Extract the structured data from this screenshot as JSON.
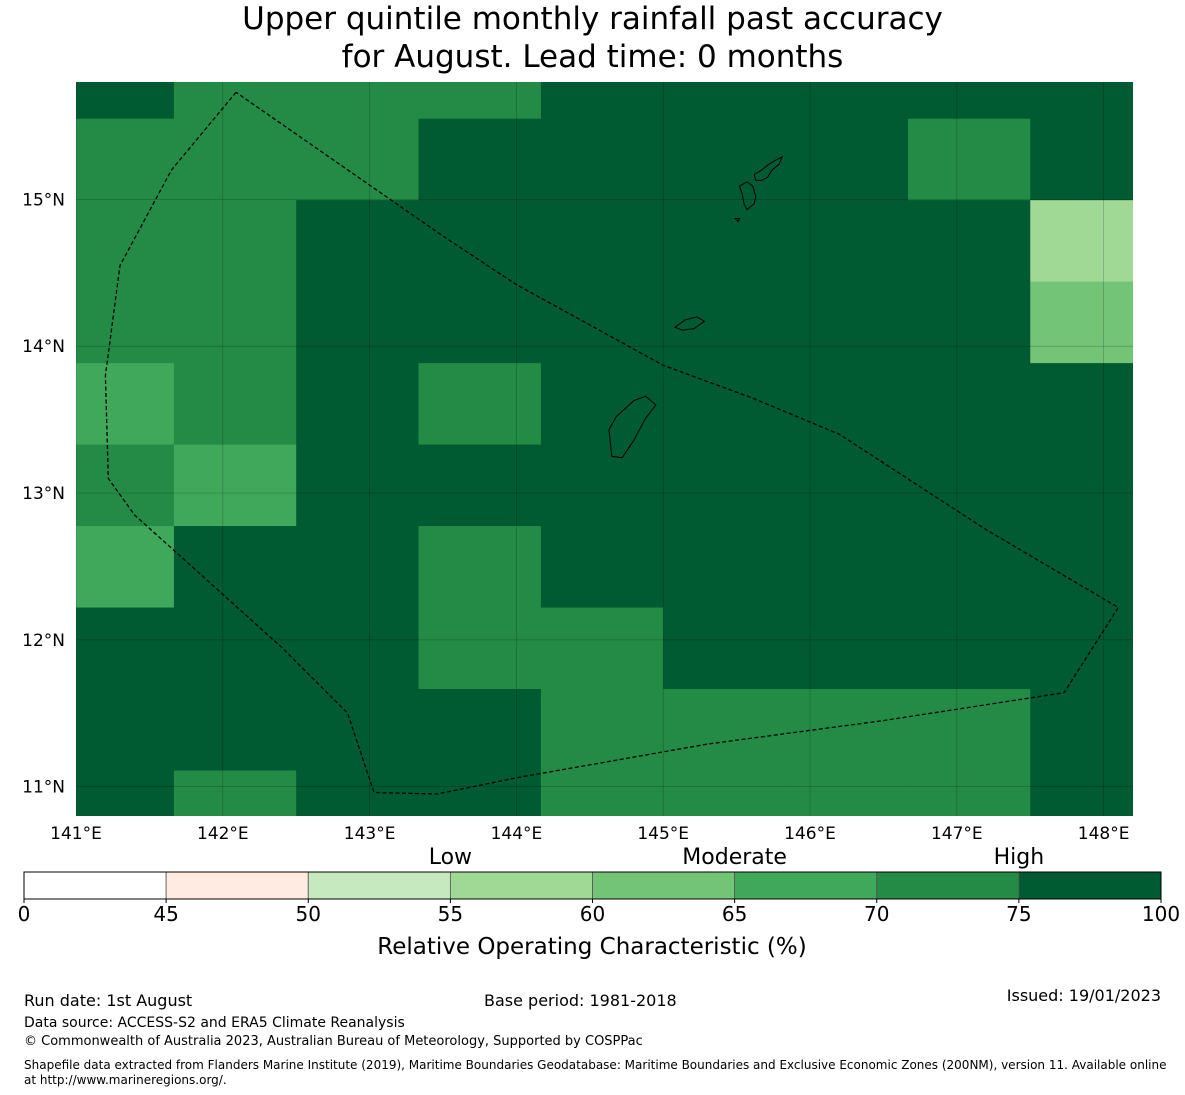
{
  "title": {
    "line1": "Upper quintile monthly rainfall past accuracy",
    "line2": "for August. Lead time: 0 months"
  },
  "map": {
    "lon_range": [
      141.0,
      148.2
    ],
    "lat_range": [
      10.8,
      15.8
    ],
    "lon_ticks": [
      {
        "value": 141,
        "label": "141°E"
      },
      {
        "value": 142,
        "label": "142°E"
      },
      {
        "value": 143,
        "label": "143°E"
      },
      {
        "value": 144,
        "label": "144°E"
      },
      {
        "value": 145,
        "label": "145°E"
      },
      {
        "value": 146,
        "label": "146°E"
      },
      {
        "value": 147,
        "label": "147°E"
      },
      {
        "value": 148,
        "label": "148°E"
      }
    ],
    "lat_ticks": [
      {
        "value": 11,
        "label": "11°N"
      },
      {
        "value": 12,
        "label": "12°N"
      },
      {
        "value": 13,
        "label": "13°N"
      },
      {
        "value": 14,
        "label": "14°N"
      },
      {
        "value": 15,
        "label": "15°N"
      }
    ],
    "grid_lon_edges": [
      140.8,
      141.667,
      142.5,
      143.333,
      144.167,
      145.0,
      145.833,
      146.667,
      147.5,
      148.333
    ],
    "grid_lat_edges": [
      16.083,
      15.55,
      14.995,
      14.44,
      13.885,
      13.33,
      12.775,
      12.22,
      11.665,
      11.11,
      10.555
    ],
    "cells": [
      [
        7,
        6,
        6,
        6,
        7,
        7,
        7,
        7,
        7
      ],
      [
        6,
        6,
        6,
        7,
        7,
        7,
        7,
        6,
        7
      ],
      [
        6,
        6,
        7,
        7,
        7,
        7,
        7,
        7,
        3
      ],
      [
        6,
        6,
        7,
        7,
        7,
        7,
        7,
        7,
        4
      ],
      [
        5,
        6,
        7,
        6,
        7,
        7,
        7,
        7,
        7
      ],
      [
        6,
        5,
        7,
        7,
        7,
        7,
        7,
        7,
        7
      ],
      [
        5,
        7,
        7,
        6,
        7,
        7,
        7,
        7,
        7
      ],
      [
        7,
        7,
        7,
        6,
        6,
        7,
        7,
        7,
        7
      ],
      [
        7,
        7,
        7,
        7,
        6,
        6,
        6,
        6,
        7
      ],
      [
        7,
        6,
        7,
        7,
        6,
        6,
        6,
        6,
        7
      ]
    ],
    "eez_boundary": [
      [
        142.09,
        15.73
      ],
      [
        141.65,
        15.2
      ],
      [
        141.3,
        14.55
      ],
      [
        141.2,
        13.8
      ],
      [
        141.22,
        13.1
      ],
      [
        141.4,
        12.85
      ],
      [
        141.9,
        12.4
      ],
      [
        142.4,
        11.95
      ],
      [
        142.85,
        11.5
      ],
      [
        143.03,
        10.96
      ],
      [
        143.46,
        10.95
      ],
      [
        144.0,
        11.06
      ],
      [
        145.3,
        11.29
      ],
      [
        146.5,
        11.45
      ],
      [
        147.73,
        11.64
      ],
      [
        148.1,
        12.22
      ],
      [
        147.2,
        12.75
      ],
      [
        146.2,
        13.4
      ],
      [
        145.6,
        13.65
      ],
      [
        145.0,
        13.87
      ],
      [
        144.0,
        14.42
      ],
      [
        143.5,
        14.75
      ],
      [
        142.09,
        15.73
      ]
    ],
    "islands": [
      [
        [
          145.52,
          15.09
        ],
        [
          145.57,
          15.12
        ],
        [
          145.61,
          15.09
        ],
        [
          145.63,
          15.02
        ],
        [
          145.62,
          14.97
        ],
        [
          145.57,
          14.93
        ],
        [
          145.55,
          14.97
        ],
        [
          145.54,
          15.03
        ],
        [
          145.52,
          15.09
        ]
      ],
      [
        [
          145.62,
          15.17
        ],
        [
          145.67,
          15.2
        ],
        [
          145.72,
          15.24
        ],
        [
          145.77,
          15.27
        ],
        [
          145.81,
          15.29
        ],
        [
          145.79,
          15.24
        ],
        [
          145.74,
          15.2
        ],
        [
          145.71,
          15.15
        ],
        [
          145.67,
          15.13
        ],
        [
          145.63,
          15.13
        ],
        [
          145.62,
          15.17
        ]
      ],
      [
        [
          145.49,
          14.87
        ],
        [
          145.52,
          14.87
        ],
        [
          145.51,
          14.85
        ],
        [
          145.49,
          14.87
        ]
      ],
      [
        [
          145.08,
          14.13
        ],
        [
          145.15,
          14.18
        ],
        [
          145.23,
          14.2
        ],
        [
          145.28,
          14.17
        ],
        [
          145.21,
          14.12
        ],
        [
          145.13,
          14.11
        ],
        [
          145.08,
          14.13
        ]
      ],
      [
        [
          144.63,
          13.43
        ],
        [
          144.68,
          13.52
        ],
        [
          144.8,
          13.63
        ],
        [
          144.88,
          13.66
        ],
        [
          144.95,
          13.6
        ],
        [
          144.88,
          13.51
        ],
        [
          144.8,
          13.36
        ],
        [
          144.72,
          13.24
        ],
        [
          144.65,
          13.25
        ],
        [
          144.64,
          13.34
        ],
        [
          144.63,
          13.43
        ]
      ]
    ]
  },
  "colorbar": {
    "category_labels": [
      {
        "label": "Low",
        "at": 55
      },
      {
        "label": "Moderate",
        "at": 65
      },
      {
        "label": "High",
        "at": 75
      }
    ],
    "bins": [
      {
        "from": 0,
        "to": 45,
        "color": "#ffffff"
      },
      {
        "from": 45,
        "to": 50,
        "color": "#ffebe1"
      },
      {
        "from": 50,
        "to": 55,
        "color": "#c6e9bf"
      },
      {
        "from": 55,
        "to": 60,
        "color": "#a0d896"
      },
      {
        "from": 60,
        "to": 65,
        "color": "#73c476"
      },
      {
        "from": 65,
        "to": 70,
        "color": "#3fa85b"
      },
      {
        "from": 70,
        "to": 75,
        "color": "#238b45"
      },
      {
        "from": 75,
        "to": 100,
        "color": "#005a32"
      }
    ],
    "ticks": [
      "0",
      "45",
      "50",
      "55",
      "60",
      "65",
      "70",
      "75",
      "100"
    ],
    "title": "Relative Operating Characteristic (%)"
  },
  "footer": {
    "run_date": "Run date: 1st August",
    "base_period": "Base period: 1981-2018",
    "issued": "Issued: 19/01/2023",
    "data_source": "Data source: ACCESS-S2 and ERA5 Climate Reanalysis",
    "copyright": "© Commonwealth of Australia 2023, Australian Bureau of Meteorology, Supported by COSPPac",
    "shapefile": "Shapefile data extracted from Flanders Marine Institute (2019), Maritime Boundaries Geodatabase: Maritime Boundaries and Exclusive Economic Zones (200NM), version 11. Available online at http://www.marineregions.org/."
  }
}
